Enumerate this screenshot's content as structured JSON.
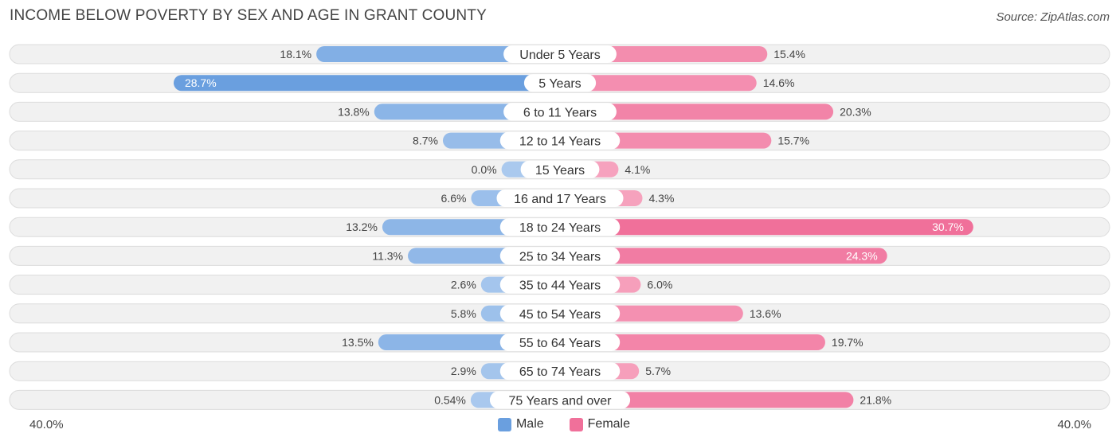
{
  "title": "INCOME BELOW POVERTY BY SEX AND AGE IN GRANT COUNTY",
  "source": "Source: ZipAtlas.com",
  "colors": {
    "male_strong": "#6a9fdf",
    "male_light": "#aac9ee",
    "female_strong": "#f0709a",
    "female_light": "#f7aac3",
    "row_bg": "#f1f1f1",
    "row_border": "#dcdcdc"
  },
  "chart_data": {
    "type": "bar",
    "orientation": "horizontal-diverging",
    "categories": [
      "Under 5 Years",
      "5 Years",
      "6 to 11 Years",
      "12 to 14 Years",
      "15 Years",
      "16 and 17 Years",
      "18 to 24 Years",
      "25 to 34 Years",
      "35 to 44 Years",
      "45 to 54 Years",
      "55 to 64 Years",
      "65 to 74 Years",
      "75 Years and over"
    ],
    "series": [
      {
        "name": "Male",
        "values": [
          18.1,
          28.7,
          13.8,
          8.7,
          0.0,
          6.6,
          13.2,
          11.3,
          2.6,
          5.8,
          13.5,
          2.9,
          0.54
        ],
        "labels": [
          "18.1%",
          "28.7%",
          "13.8%",
          "8.7%",
          "0.0%",
          "6.6%",
          "13.2%",
          "11.3%",
          "2.6%",
          "5.8%",
          "13.5%",
          "2.9%",
          "0.54%"
        ]
      },
      {
        "name": "Female",
        "values": [
          15.4,
          14.6,
          20.3,
          15.7,
          4.1,
          4.3,
          30.7,
          24.3,
          6.0,
          13.6,
          19.7,
          5.7,
          21.8
        ],
        "labels": [
          "15.4%",
          "14.6%",
          "20.3%",
          "15.7%",
          "4.1%",
          "4.3%",
          "30.7%",
          "24.3%",
          "6.0%",
          "13.6%",
          "19.7%",
          "5.7%",
          "21.8%"
        ]
      }
    ],
    "xlim": [
      -40,
      40
    ],
    "axis_left_label": "40.0%",
    "axis_right_label": "40.0%",
    "legend": [
      "Male",
      "Female"
    ]
  }
}
